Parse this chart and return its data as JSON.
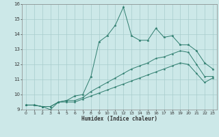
{
  "xlabel": "Humidex (Indice chaleur)",
  "background_color": "#cce8e8",
  "line_color": "#2e7d6e",
  "grid_color": "#a8cccc",
  "xlim": [
    -0.5,
    23.5
  ],
  "ylim": [
    9,
    16
  ],
  "xticks": [
    0,
    1,
    2,
    3,
    4,
    5,
    6,
    7,
    8,
    9,
    10,
    11,
    12,
    13,
    14,
    15,
    16,
    17,
    18,
    19,
    20,
    21,
    22,
    23
  ],
  "yticks": [
    9,
    10,
    11,
    12,
    13,
    14,
    15,
    16
  ],
  "series1_x": [
    0,
    1,
    2,
    3,
    4,
    5,
    6,
    7,
    8,
    9,
    10,
    11,
    12,
    13,
    14,
    15,
    16,
    17,
    18,
    19,
    20,
    21,
    22,
    23
  ],
  "series1_y": [
    9.3,
    9.3,
    9.2,
    9.0,
    9.5,
    9.6,
    9.9,
    10.0,
    11.2,
    13.5,
    13.9,
    14.6,
    15.8,
    13.9,
    13.6,
    13.6,
    14.4,
    13.8,
    13.9,
    13.3,
    13.3,
    12.9,
    12.1,
    11.7
  ],
  "series2_x": [
    0,
    1,
    2,
    3,
    4,
    5,
    6,
    7,
    8,
    9,
    10,
    11,
    12,
    13,
    14,
    15,
    16,
    17,
    18,
    19,
    20,
    21,
    22,
    23
  ],
  "series2_y": [
    9.3,
    9.3,
    9.2,
    9.2,
    9.5,
    9.6,
    9.6,
    9.8,
    10.2,
    10.5,
    10.8,
    11.1,
    11.4,
    11.7,
    11.9,
    12.1,
    12.4,
    12.5,
    12.7,
    12.9,
    12.8,
    12.0,
    11.2,
    11.2
  ],
  "series3_x": [
    0,
    1,
    2,
    3,
    4,
    5,
    6,
    7,
    8,
    9,
    10,
    11,
    12,
    13,
    14,
    15,
    16,
    17,
    18,
    19,
    20,
    21,
    22,
    23
  ],
  "series3_y": [
    9.3,
    9.3,
    9.2,
    9.2,
    9.5,
    9.5,
    9.5,
    9.7,
    9.9,
    10.1,
    10.3,
    10.5,
    10.7,
    10.9,
    11.1,
    11.3,
    11.5,
    11.7,
    11.9,
    12.1,
    12.0,
    11.4,
    10.8,
    11.1
  ]
}
